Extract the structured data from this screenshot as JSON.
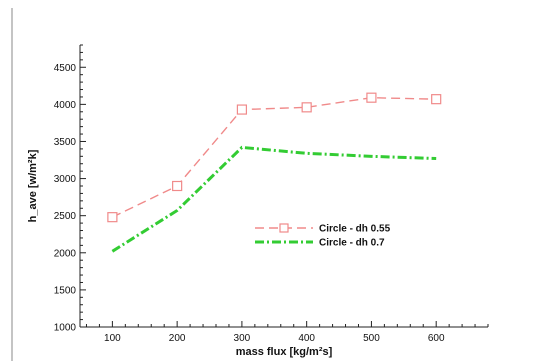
{
  "chart_data": {
    "type": "line",
    "xlabel": "mass flux [kg/m²s]",
    "ylabel": "h_ave [w/m²k]",
    "xlim": [
      50,
      680
    ],
    "ylim": [
      1000,
      4800
    ],
    "xticks": [
      100,
      200,
      300,
      400,
      500,
      600
    ],
    "yticks": [
      1000,
      1500,
      2000,
      2500,
      3000,
      3500,
      4000,
      4500
    ],
    "legend_position": "center-right",
    "grid": false,
    "x": [
      100,
      200,
      300,
      400,
      500,
      600
    ],
    "series": [
      {
        "name": "Circle - dh 0.55",
        "values": [
          2480,
          2900,
          3930,
          3960,
          4090,
          4070
        ],
        "color": "#f08a8a",
        "line_style": "dashed",
        "marker": "square"
      },
      {
        "name": "Circle - dh 0.7",
        "values": [
          2020,
          2570,
          3420,
          3340,
          3300,
          3270
        ],
        "color": "#33cc33",
        "line_style": "dash-dot",
        "marker": "none"
      }
    ]
  }
}
